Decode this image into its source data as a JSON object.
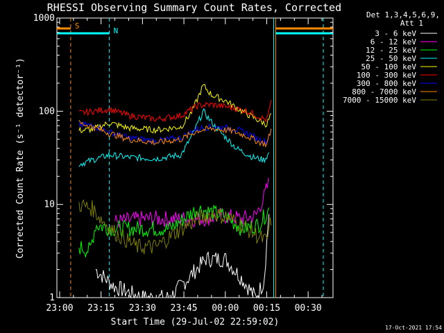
{
  "chart_data": {
    "type": "line",
    "title": "RHESSI Observing Summary Count Rates, Corrected",
    "xlabel": "Start Time (29-Jul-02 22:59:02)",
    "ylabel": "Corrected Count Rate (s⁻¹ detector⁻¹)",
    "y_scale": "log",
    "ylim": [
      1,
      1000
    ],
    "xlim": [
      "22:59",
      "00:39"
    ],
    "x_ticks": [
      "23:00",
      "23:15",
      "23:30",
      "23:45",
      "00:00",
      "00:15",
      "00:30"
    ],
    "y_ticks": [
      "1",
      "10",
      "100",
      "1000"
    ],
    "legend_header": [
      "Det 1,3,4,5,6,9,",
      "Att 1"
    ],
    "legend_position": "right",
    "timestamp": "17-Oct-2021 17:54",
    "flags": [
      {
        "label": "S",
        "color": "#ff8c00",
        "start": "22:59",
        "end": "23:04"
      },
      {
        "label": "N",
        "color": "#00ffff",
        "start": "22:59",
        "end": "23:18"
      }
    ],
    "series": [
      {
        "name": "3 - 6 keV",
        "color": "#ffffff",
        "t": [
          "23:13",
          "23:20",
          "23:30",
          "23:40",
          "23:48",
          "23:53",
          "00:00",
          "00:06",
          "00:11",
          "00:14",
          "00:16"
        ],
        "v": [
          2.0,
          1.3,
          1.0,
          1.0,
          1.8,
          2.6,
          2.6,
          1.6,
          1.0,
          1.5,
          10
        ]
      },
      {
        "name": "6 - 12 keV",
        "color": "#ff00ff",
        "t": [
          "23:20",
          "23:30",
          "23:40",
          "23:50",
          "00:00",
          "00:06",
          "00:11",
          "00:14",
          "00:16"
        ],
        "v": [
          6.5,
          7.0,
          7.0,
          7.0,
          7.5,
          7.0,
          7.5,
          12,
          18
        ]
      },
      {
        "name": "12 - 25 keV",
        "color": "#00ff00",
        "t": [
          "23:07",
          "23:11",
          "23:13",
          "23:20",
          "23:30",
          "23:40",
          "23:50",
          "00:00",
          "00:06",
          "00:12",
          "00:16"
        ],
        "v": [
          3.5,
          3.2,
          6.0,
          5.5,
          5.5,
          5.5,
          9.0,
          7.5,
          5.5,
          6.0,
          9.0
        ]
      },
      {
        "name": "25 - 50 keV",
        "color": "#00ffff",
        "t": [
          "23:07",
          "23:12",
          "23:18",
          "23:25",
          "23:35",
          "23:44",
          "23:48",
          "23:52",
          "23:56",
          "00:04",
          "00:10",
          "00:14",
          "00:16"
        ],
        "v": [
          27,
          30,
          34,
          32,
          31,
          34,
          55,
          100,
          70,
          40,
          32,
          30,
          36
        ]
      },
      {
        "name": "50 - 100 keV",
        "color": "#ffff00",
        "t": [
          "23:07",
          "23:12",
          "23:18",
          "23:25",
          "23:35",
          "23:44",
          "23:48",
          "23:52",
          "23:55",
          "00:00",
          "00:06",
          "00:12",
          "00:15",
          "00:17"
        ],
        "v": [
          62,
          64,
          75,
          66,
          63,
          68,
          100,
          190,
          150,
          130,
          100,
          80,
          72,
          100
        ]
      },
      {
        "name": "100 - 300 keV",
        "color": "#ff0000",
        "t": [
          "23:07",
          "23:12",
          "23:18",
          "23:25",
          "23:35",
          "23:44",
          "23:50",
          "23:55",
          "00:02",
          "00:08",
          "00:12",
          "00:15",
          "00:17"
        ],
        "v": [
          95,
          100,
          105,
          90,
          82,
          90,
          115,
          118,
          110,
          100,
          88,
          80,
          140
        ]
      },
      {
        "name": "300 - 800 keV",
        "color": "#0000ff",
        "t": [
          "23:07",
          "23:12",
          "23:18",
          "23:25",
          "23:35",
          "23:44",
          "23:50",
          "23:55",
          "00:02",
          "00:08",
          "00:12",
          "00:15",
          "00:17"
        ],
        "v": [
          72,
          70,
          60,
          52,
          48,
          52,
          65,
          68,
          66,
          58,
          50,
          47,
          70
        ]
      },
      {
        "name": "800 - 7000 keV",
        "color": "#ff8c00",
        "t": [
          "23:07",
          "23:12",
          "23:18",
          "23:25",
          "23:35",
          "23:44",
          "23:50",
          "23:55",
          "00:02",
          "00:08",
          "00:12",
          "00:15",
          "00:17"
        ],
        "v": [
          75,
          68,
          58,
          50,
          46,
          50,
          62,
          65,
          62,
          54,
          47,
          44,
          70
        ]
      },
      {
        "name": "7000 - 15000 keV",
        "color": "#808000",
        "t": [
          "23:07",
          "23:12",
          "23:15",
          "23:20",
          "23:28",
          "23:35",
          "23:42",
          "23:50",
          "23:56",
          "00:02",
          "00:08",
          "00:12",
          "00:15",
          "00:17"
        ],
        "v": [
          10,
          9,
          7,
          5,
          3.5,
          3.5,
          5,
          7,
          8,
          7,
          5.5,
          4.5,
          4.0,
          8
        ]
      }
    ]
  }
}
